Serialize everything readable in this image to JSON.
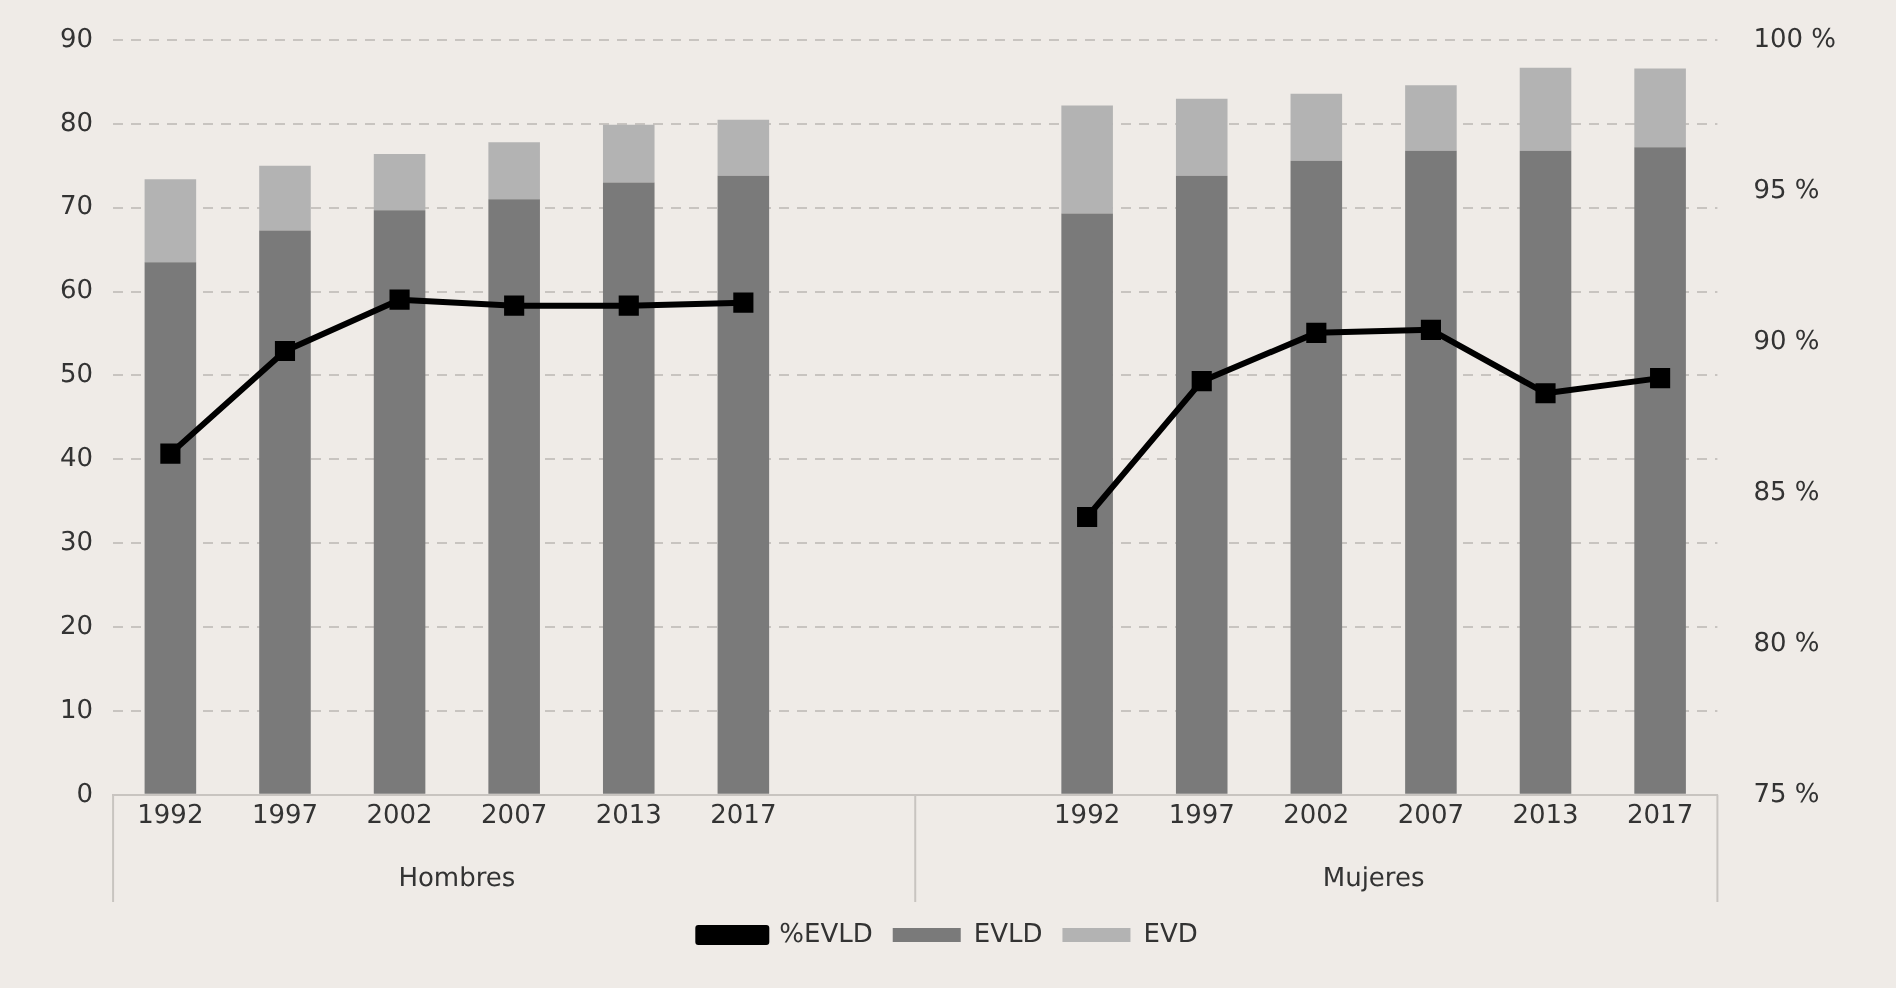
{
  "chart_data": {
    "type": "bar",
    "stacked": true,
    "categories": [
      "1992",
      "1997",
      "2002",
      "2007",
      "2013",
      "2017",
      null,
      null,
      "1992",
      "1997",
      "2002",
      "2007",
      "2013",
      "2017"
    ],
    "series": [
      {
        "name": "EVLD",
        "color": "#7a7a7a",
        "values": [
          63.5,
          67.3,
          69.7,
          71.0,
          73.0,
          73.8,
          null,
          null,
          69.3,
          73.8,
          75.6,
          76.8,
          76.8,
          77.2
        ]
      },
      {
        "name": "EVD",
        "color": "#b3b3b3",
        "values": [
          9.9,
          7.7,
          6.7,
          6.8,
          6.9,
          6.7,
          null,
          null,
          12.9,
          9.2,
          8.0,
          7.8,
          9.9,
          9.4
        ]
      },
      {
        "name": "%EVLD",
        "type": "line",
        "axis": "y2",
        "color": "#000000",
        "values": [
          86.3,
          89.7,
          91.4,
          91.2,
          91.2,
          91.3,
          null,
          null,
          84.2,
          88.7,
          90.3,
          90.4,
          88.3,
          88.8
        ]
      }
    ],
    "ylim": [
      0,
      90
    ],
    "yticks": [
      0,
      10,
      20,
      30,
      40,
      50,
      60,
      70,
      80,
      90
    ],
    "y2lim": [
      75,
      100
    ],
    "y2ticks": [
      {
        "value": 75,
        "label": "75 %"
      },
      {
        "value": 80,
        "label": "80 %"
      },
      {
        "value": 85,
        "label": "85 %"
      },
      {
        "value": 90,
        "label": "90 %"
      },
      {
        "value": 95,
        "label": "95 %"
      },
      {
        "value": 100,
        "label": "100 %"
      }
    ],
    "annotations": [
      "Hombres",
      "Mujeres"
    ],
    "grid": "y",
    "legend": "bottom",
    "marker": "square",
    "line_style": "solid"
  }
}
